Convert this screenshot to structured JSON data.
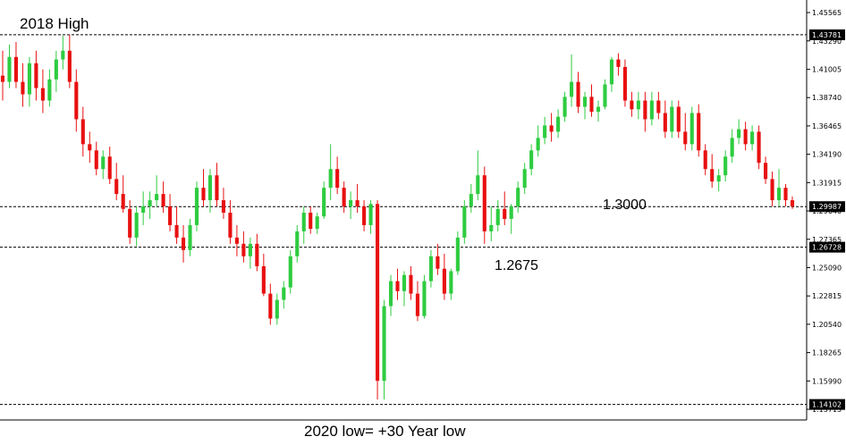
{
  "chart_data": {
    "type": "candlestick",
    "ylim": [
      1.13,
      1.46
    ],
    "y_ticks": [
      "1.45565",
      "1.43290",
      "1.41005",
      "1.38740",
      "1.36465",
      "1.34190",
      "1.31915",
      "1.29640",
      "1.27365",
      "1.25090",
      "1.22815",
      "1.20540",
      "1.18265",
      "1.15990",
      "1.13715"
    ],
    "levels": [
      {
        "value": 1.43781,
        "label": "1.43781"
      },
      {
        "value": 1.29987,
        "label": "1.29987"
      },
      {
        "value": 1.26728,
        "label": "1.26728"
      },
      {
        "value": 1.14102,
        "label": "1.14102"
      }
    ],
    "annotations": [
      {
        "text": "2018 High"
      },
      {
        "text": "1.3000"
      },
      {
        "text": "1.2675"
      },
      {
        "text": "2020 low= +30 Year low"
      }
    ],
    "colors": {
      "up": "#2ecc40",
      "down": "#e81010",
      "level_tag": "#000000",
      "grid_line": "#000000"
    },
    "candles": [
      [
        1.405,
        1.425,
        1.385,
        1.4
      ],
      [
        1.4,
        1.43,
        1.395,
        1.42
      ],
      [
        1.42,
        1.432,
        1.395,
        1.4
      ],
      [
        1.4,
        1.415,
        1.38,
        1.39
      ],
      [
        1.39,
        1.42,
        1.38,
        1.415
      ],
      [
        1.415,
        1.425,
        1.385,
        1.395
      ],
      [
        1.395,
        1.41,
        1.375,
        1.385
      ],
      [
        1.385,
        1.41,
        1.38,
        1.402
      ],
      [
        1.402,
        1.425,
        1.392,
        1.418
      ],
      [
        1.418,
        1.437,
        1.41,
        1.425
      ],
      [
        1.425,
        1.438,
        1.395,
        1.4
      ],
      [
        1.4,
        1.41,
        1.36,
        1.37
      ],
      [
        1.37,
        1.38,
        1.34,
        1.35
      ],
      [
        1.35,
        1.36,
        1.335,
        1.345
      ],
      [
        1.345,
        1.352,
        1.325,
        1.33
      ],
      [
        1.33,
        1.345,
        1.322,
        1.34
      ],
      [
        1.34,
        1.348,
        1.318,
        1.322
      ],
      [
        1.322,
        1.335,
        1.305,
        1.31
      ],
      [
        1.31,
        1.325,
        1.295,
        1.298
      ],
      [
        1.298,
        1.305,
        1.27,
        1.275
      ],
      [
        1.275,
        1.3,
        1.268,
        1.295
      ],
      [
        1.295,
        1.312,
        1.285,
        1.3
      ],
      [
        1.3,
        1.312,
        1.29,
        1.305
      ],
      [
        1.305,
        1.325,
        1.3,
        1.31
      ],
      [
        1.31,
        1.32,
        1.295,
        1.3
      ],
      [
        1.3,
        1.31,
        1.28,
        1.285
      ],
      [
        1.285,
        1.3,
        1.27,
        1.275
      ],
      [
        1.275,
        1.285,
        1.255,
        1.265
      ],
      [
        1.265,
        1.29,
        1.26,
        1.285
      ],
      [
        1.285,
        1.32,
        1.28,
        1.315
      ],
      [
        1.315,
        1.33,
        1.3,
        1.305
      ],
      [
        1.305,
        1.33,
        1.295,
        1.325
      ],
      [
        1.325,
        1.335,
        1.3,
        1.305
      ],
      [
        1.305,
        1.315,
        1.29,
        1.295
      ],
      [
        1.295,
        1.305,
        1.27,
        1.275
      ],
      [
        1.275,
        1.285,
        1.26,
        1.27
      ],
      [
        1.27,
        1.28,
        1.255,
        1.26
      ],
      [
        1.26,
        1.275,
        1.25,
        1.27
      ],
      [
        1.27,
        1.278,
        1.248,
        1.252
      ],
      [
        1.252,
        1.262,
        1.228,
        1.23
      ],
      [
        1.23,
        1.238,
        1.205,
        1.21
      ],
      [
        1.21,
        1.23,
        1.205,
        1.225
      ],
      [
        1.225,
        1.24,
        1.218,
        1.235
      ],
      [
        1.235,
        1.265,
        1.23,
        1.26
      ],
      [
        1.26,
        1.285,
        1.255,
        1.28
      ],
      [
        1.28,
        1.3,
        1.27,
        1.295
      ],
      [
        1.295,
        1.3,
        1.278,
        1.282
      ],
      [
        1.282,
        1.295,
        1.278,
        1.292
      ],
      [
        1.292,
        1.32,
        1.29,
        1.315
      ],
      [
        1.315,
        1.35,
        1.305,
        1.33
      ],
      [
        1.33,
        1.34,
        1.31,
        1.315
      ],
      [
        1.315,
        1.32,
        1.295,
        1.3
      ],
      [
        1.3,
        1.312,
        1.29,
        1.305
      ],
      [
        1.305,
        1.318,
        1.295,
        1.3
      ],
      [
        1.3,
        1.305,
        1.28,
        1.285
      ],
      [
        1.285,
        1.305,
        1.278,
        1.302
      ],
      [
        1.302,
        1.305,
        1.145,
        1.16
      ],
      [
        1.16,
        1.225,
        1.145,
        1.22
      ],
      [
        1.22,
        1.245,
        1.212,
        1.24
      ],
      [
        1.24,
        1.25,
        1.225,
        1.232
      ],
      [
        1.232,
        1.248,
        1.22,
        1.245
      ],
      [
        1.245,
        1.252,
        1.225,
        1.23
      ],
      [
        1.23,
        1.24,
        1.208,
        1.212
      ],
      [
        1.212,
        1.245,
        1.21,
        1.24
      ],
      [
        1.24,
        1.265,
        1.235,
        1.26
      ],
      [
        1.26,
        1.27,
        1.245,
        1.25
      ],
      [
        1.25,
        1.262,
        1.225,
        1.23
      ],
      [
        1.23,
        1.25,
        1.225,
        1.248
      ],
      [
        1.248,
        1.28,
        1.245,
        1.275
      ],
      [
        1.275,
        1.305,
        1.27,
        1.3
      ],
      [
        1.3,
        1.318,
        1.295,
        1.31
      ],
      [
        1.31,
        1.345,
        1.305,
        1.325
      ],
      [
        1.325,
        1.332,
        1.27,
        1.28
      ],
      [
        1.28,
        1.3,
        1.272,
        1.285
      ],
      [
        1.285,
        1.305,
        1.28,
        1.298
      ],
      [
        1.298,
        1.312,
        1.285,
        1.29
      ],
      [
        1.29,
        1.302,
        1.278,
        1.3
      ],
      [
        1.3,
        1.32,
        1.295,
        1.315
      ],
      [
        1.315,
        1.335,
        1.31,
        1.33
      ],
      [
        1.33,
        1.35,
        1.325,
        1.345
      ],
      [
        1.345,
        1.365,
        1.34,
        1.355
      ],
      [
        1.355,
        1.372,
        1.35,
        1.365
      ],
      [
        1.365,
        1.375,
        1.352,
        1.36
      ],
      [
        1.36,
        1.378,
        1.355,
        1.372
      ],
      [
        1.372,
        1.392,
        1.368,
        1.388
      ],
      [
        1.388,
        1.422,
        1.38,
        1.4
      ],
      [
        1.4,
        1.408,
        1.375,
        1.38
      ],
      [
        1.38,
        1.392,
        1.37,
        1.388
      ],
      [
        1.388,
        1.398,
        1.372,
        1.376
      ],
      [
        1.376,
        1.385,
        1.368,
        1.38
      ],
      [
        1.38,
        1.402,
        1.378,
        1.398
      ],
      [
        1.398,
        1.42,
        1.392,
        1.418
      ],
      [
        1.418,
        1.423,
        1.405,
        1.412
      ],
      [
        1.412,
        1.418,
        1.38,
        1.385
      ],
      [
        1.385,
        1.392,
        1.372,
        1.378
      ],
      [
        1.378,
        1.392,
        1.37,
        1.385
      ],
      [
        1.385,
        1.392,
        1.36,
        1.37
      ],
      [
        1.37,
        1.392,
        1.365,
        1.385
      ],
      [
        1.385,
        1.392,
        1.37,
        1.375
      ],
      [
        1.375,
        1.385,
        1.355,
        1.36
      ],
      [
        1.36,
        1.385,
        1.355,
        1.38
      ],
      [
        1.38,
        1.385,
        1.355,
        1.36
      ],
      [
        1.36,
        1.375,
        1.345,
        1.35
      ],
      [
        1.35,
        1.38,
        1.345,
        1.375
      ],
      [
        1.375,
        1.382,
        1.34,
        1.345
      ],
      [
        1.345,
        1.35,
        1.325,
        1.33
      ],
      [
        1.33,
        1.342,
        1.315,
        1.32
      ],
      [
        1.32,
        1.33,
        1.312,
        1.325
      ],
      [
        1.325,
        1.345,
        1.32,
        1.34
      ],
      [
        1.34,
        1.362,
        1.335,
        1.355
      ],
      [
        1.355,
        1.37,
        1.35,
        1.362
      ],
      [
        1.362,
        1.368,
        1.345,
        1.35
      ],
      [
        1.35,
        1.365,
        1.345,
        1.36
      ],
      [
        1.36,
        1.365,
        1.33,
        1.335
      ],
      [
        1.335,
        1.34,
        1.318,
        1.322
      ],
      [
        1.322,
        1.328,
        1.3,
        1.305
      ],
      [
        1.305,
        1.33,
        1.3,
        1.315
      ],
      [
        1.315,
        1.318,
        1.3,
        1.305
      ],
      [
        1.305,
        1.308,
        1.298,
        1.3
      ]
    ]
  }
}
